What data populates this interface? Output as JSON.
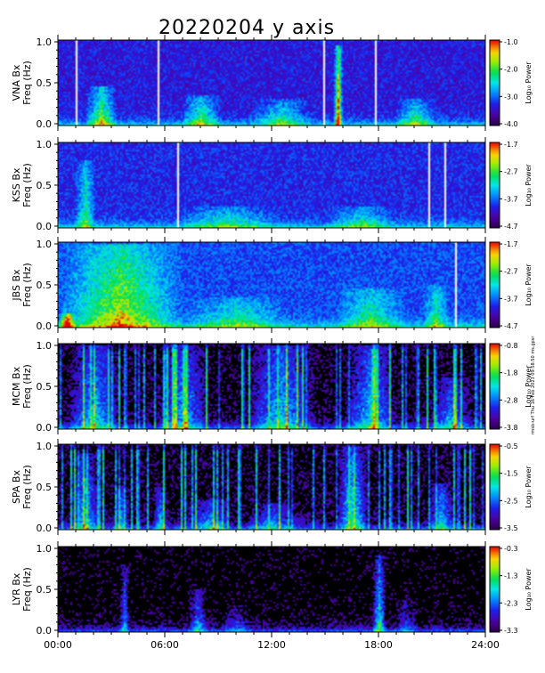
{
  "title": "20220204  y axis",
  "side_note": "rmsb-urf Thu 16 Feb 2023 09:58:50 ms.gpsr",
  "colorbar_label": "Log₁₀ Power",
  "colors": {
    "background": "#ffffff",
    "empty_spectrogram": "#000000",
    "gap_line": "#ffffff"
  },
  "chart_data": [
    {
      "type": "heatmap",
      "station": "VNA",
      "ylabel_top": "VNA Bx",
      "ylabel_bottom": "Freq (Hz)",
      "yticks": [
        "0.0",
        "0.5",
        "1.0"
      ],
      "ylim": [
        0,
        1
      ],
      "color_ticks": [
        "-1.0",
        "-2.0",
        "-3.0",
        "-4.0"
      ],
      "clim": [
        -4.0,
        -1.0
      ],
      "background_level": 0.22,
      "gaps_hours": [
        1.0,
        5.6,
        14.9,
        17.8
      ],
      "events": [
        {
          "t": 2.4,
          "w": 1.8,
          "s": 0.55,
          "h": 0.45
        },
        {
          "t": 8.0,
          "w": 2.4,
          "s": 0.45,
          "h": 0.35
        },
        {
          "t": 12.5,
          "w": 3.5,
          "s": 0.35,
          "h": 0.3
        },
        {
          "t": 15.7,
          "w": 0.5,
          "s": 0.9,
          "h": 0.95
        },
        {
          "t": 20.0,
          "w": 2.5,
          "s": 0.4,
          "h": 0.3
        }
      ]
    },
    {
      "type": "heatmap",
      "station": "KSS",
      "ylabel_top": "KSS Bx",
      "ylabel_bottom": "Freq (Hz)",
      "yticks": [
        "0.0",
        "0.5",
        "1.0"
      ],
      "ylim": [
        0,
        1
      ],
      "color_ticks": [
        "-1.7",
        "-2.7",
        "-3.7",
        "-4.7"
      ],
      "clim": [
        -4.7,
        -1.7
      ],
      "background_level": 0.25,
      "gaps_hours": [
        6.7,
        20.8,
        21.7
      ],
      "events": [
        {
          "t": 1.5,
          "w": 1.2,
          "s": 0.4,
          "h": 0.8
        },
        {
          "t": 9.5,
          "w": 6.0,
          "s": 0.3,
          "h": 0.25
        },
        {
          "t": 17.0,
          "w": 4.0,
          "s": 0.3,
          "h": 0.25
        }
      ]
    },
    {
      "type": "heatmap",
      "station": "JBS",
      "ylabel_top": "JBS Bx",
      "ylabel_bottom": "Freq (Hz)",
      "yticks": [
        "0.0",
        "0.5",
        "1.0"
      ],
      "ylim": [
        0,
        1
      ],
      "color_ticks": [
        "-1.7",
        "-2.7",
        "-3.7",
        "-4.7"
      ],
      "clim": [
        -4.7,
        -1.7
      ],
      "background_level": 0.3,
      "gaps_hours": [
        22.3
      ],
      "events": [
        {
          "t": 3.5,
          "w": 7.2,
          "s": 0.55,
          "h": 1.0
        },
        {
          "t": 0.5,
          "w": 1.0,
          "s": 0.9,
          "h": 0.15
        },
        {
          "t": 10.0,
          "w": 6.0,
          "s": 0.3,
          "h": 0.35
        },
        {
          "t": 17.5,
          "w": 4.0,
          "s": 0.35,
          "h": 0.45
        },
        {
          "t": 21.2,
          "w": 1.5,
          "s": 0.35,
          "h": 0.5
        }
      ]
    },
    {
      "type": "heatmap",
      "station": "MCM",
      "ylabel_top": "MCM Bx",
      "ylabel_bottom": "Freq (Hz)",
      "yticks": [
        "0.0",
        "0.5",
        "1.0"
      ],
      "ylim": [
        0,
        1
      ],
      "color_ticks": [
        "-0.8",
        "-1.8",
        "-2.8",
        "-3.8"
      ],
      "clim": [
        -3.8,
        -0.8
      ],
      "background_level": 0.08,
      "gaps_hours": [],
      "events": [
        {
          "t": 2.0,
          "w": 3.0,
          "s": 0.45,
          "h": 1.0
        },
        {
          "t": 7.0,
          "w": 3.0,
          "s": 0.4,
          "h": 1.0
        },
        {
          "t": 12.5,
          "w": 4.0,
          "s": 0.45,
          "h": 1.0
        },
        {
          "t": 17.5,
          "w": 3.0,
          "s": 0.45,
          "h": 1.0
        },
        {
          "t": 22.0,
          "w": 2.5,
          "s": 0.35,
          "h": 0.6
        }
      ]
    },
    {
      "type": "heatmap",
      "station": "SPA",
      "ylabel_top": "SPA Bx",
      "ylabel_bottom": "Freq (Hz)",
      "yticks": [
        "0.0",
        "0.5",
        "1.0"
      ],
      "ylim": [
        0,
        1
      ],
      "color_ticks": [
        "-0.5",
        "-1.5",
        "-2.5",
        "-3.5"
      ],
      "clim": [
        -3.5,
        -0.5
      ],
      "background_level": 0.08,
      "gaps_hours": [],
      "events": [
        {
          "t": 1.5,
          "w": 1.6,
          "s": 0.45,
          "h": 0.9
        },
        {
          "t": 3.5,
          "w": 1.0,
          "s": 0.35,
          "h": 0.5
        },
        {
          "t": 5.7,
          "w": 0.8,
          "s": 0.4,
          "h": 0.5
        },
        {
          "t": 8.5,
          "w": 2.5,
          "s": 0.35,
          "h": 0.35
        },
        {
          "t": 12.0,
          "w": 3.0,
          "s": 0.3,
          "h": 0.3
        },
        {
          "t": 16.5,
          "w": 1.8,
          "s": 0.55,
          "h": 1.0
        },
        {
          "t": 21.5,
          "w": 1.6,
          "s": 0.4,
          "h": 0.55
        }
      ]
    },
    {
      "type": "heatmap",
      "station": "LYR",
      "ylabel_top": "LYR Bx",
      "ylabel_bottom": "Freq (Hz)",
      "yticks": [
        "0.0",
        "0.5",
        "1.0"
      ],
      "ylim": [
        0,
        1
      ],
      "color_ticks": [
        "-0.3",
        "-1.3",
        "-2.3",
        "-3.3"
      ],
      "clim": [
        -3.3,
        -0.3
      ],
      "background_level": 0.05,
      "gaps_hours": [],
      "events": [
        {
          "t": 3.7,
          "w": 0.6,
          "s": 0.35,
          "h": 0.8
        },
        {
          "t": 7.8,
          "w": 1.2,
          "s": 0.35,
          "h": 0.5
        },
        {
          "t": 10.0,
          "w": 2.0,
          "s": 0.2,
          "h": 0.3
        },
        {
          "t": 18.0,
          "w": 0.8,
          "s": 0.55,
          "h": 0.9
        },
        {
          "t": 19.5,
          "w": 1.5,
          "s": 0.2,
          "h": 0.4
        }
      ]
    }
  ],
  "xaxis": {
    "ticks": [
      "00:00",
      "06:00",
      "12:00",
      "18:00",
      "24:00"
    ],
    "xlim_hours": [
      0,
      24
    ]
  }
}
